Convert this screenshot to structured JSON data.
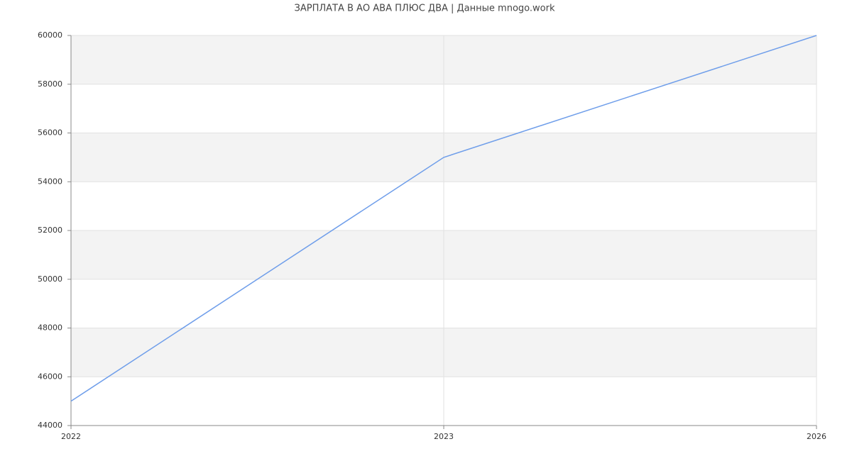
{
  "chart_data": {
    "type": "line",
    "title": "ЗАРПЛАТА В АО АВА ПЛЮС ДВА | Данные mnogo.work",
    "categories": [
      "2022",
      "2023",
      "2026"
    ],
    "series": [
      {
        "color": "#6f9eea",
        "values": [
          45000,
          55000,
          60000
        ]
      }
    ],
    "ylim": [
      44000,
      60000
    ],
    "yticks": [
      44000,
      46000,
      48000,
      50000,
      52000,
      54000,
      56000,
      58000,
      60000
    ],
    "grid": true
  }
}
